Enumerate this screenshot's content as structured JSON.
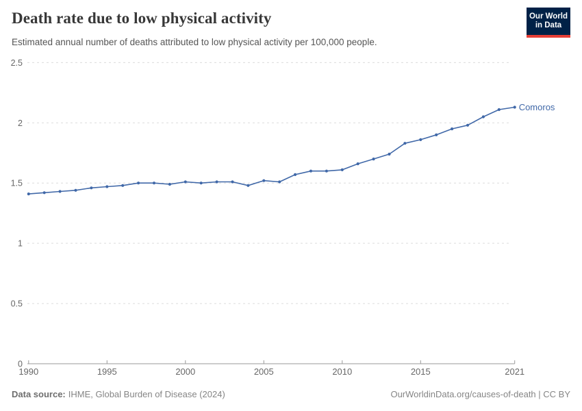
{
  "header": {
    "title": "Death rate due to low physical activity",
    "subtitle": "Estimated annual number of deaths attributed to low physical activity per 100,000 people.",
    "logo": {
      "line1": "Our World",
      "line2": "in Data"
    }
  },
  "chart_data": {
    "type": "line",
    "title": "Death rate due to low physical activity",
    "x": [
      1990,
      1991,
      1992,
      1993,
      1994,
      1995,
      1996,
      1997,
      1998,
      1999,
      2000,
      2001,
      2002,
      2003,
      2004,
      2005,
      2006,
      2007,
      2008,
      2009,
      2010,
      2011,
      2012,
      2013,
      2014,
      2015,
      2016,
      2017,
      2018,
      2019,
      2020,
      2021
    ],
    "series": [
      {
        "name": "Comoros",
        "values": [
          1.41,
          1.42,
          1.43,
          1.44,
          1.46,
          1.47,
          1.48,
          1.5,
          1.5,
          1.49,
          1.51,
          1.5,
          1.51,
          1.51,
          1.48,
          1.52,
          1.51,
          1.57,
          1.6,
          1.6,
          1.61,
          1.66,
          1.7,
          1.74,
          1.83,
          1.86,
          1.9,
          1.95,
          1.98,
          2.05,
          2.11,
          2.13
        ]
      }
    ],
    "xlabel": "",
    "ylabel": "",
    "xlim": [
      1990,
      2021
    ],
    "ylim": [
      0,
      2.5
    ],
    "xticks": [
      1990,
      1995,
      2000,
      2005,
      2010,
      2015,
      2021
    ],
    "xtick_labels": [
      "1990",
      "1995",
      "2000",
      "2005",
      "2010",
      "2015",
      "2021"
    ],
    "yticks": [
      0,
      0.5,
      1,
      1.5,
      2,
      2.5
    ],
    "ytick_labels": [
      "0",
      "0.5",
      "1",
      "1.5",
      "2",
      "2.5"
    ],
    "grid": "horizontal-dashed",
    "legend_position": "end-of-line-label"
  },
  "footer": {
    "source_label": "Data source:",
    "source_text": "IHME, Global Burden of Disease (2024)",
    "credit": "OurWorldinData.org/causes-of-death | CC BY"
  },
  "colors": {
    "line": "#4068a8",
    "entity_label": "#4068a8",
    "gridline": "#dcdcdc",
    "axis": "#999999",
    "axis_text": "#666666",
    "logo_bg": "#002147",
    "logo_stripe": "#e63e36"
  }
}
